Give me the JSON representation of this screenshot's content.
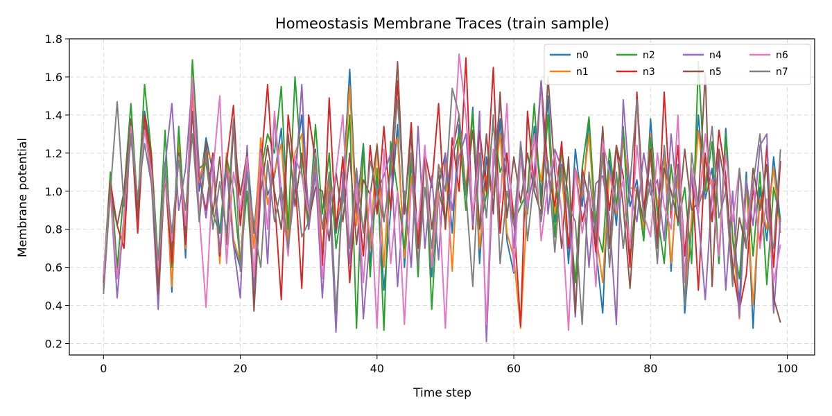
{
  "chart_data": {
    "type": "line",
    "title": "Homeostasis Membrane Traces (train sample)",
    "xlabel": "Time step",
    "ylabel": "Membrane potential",
    "xlim": [
      -5,
      104
    ],
    "ylim": [
      0.14,
      1.8
    ],
    "xticks": [
      0,
      20,
      40,
      60,
      80,
      100
    ],
    "yticks": [
      0.2,
      0.4,
      0.6,
      0.8,
      1.0,
      1.2,
      1.4,
      1.6,
      1.8
    ],
    "grid": true,
    "legend_position": "top-right",
    "x_start": 0,
    "x_step": 1,
    "series": [
      {
        "name": "n0",
        "color": "#1f77b4",
        "values": [
          0.5,
          1.08,
          0.55,
          0.82,
          1.38,
          0.85,
          1.42,
          1.2,
          0.52,
          1.15,
          0.47,
          1.3,
          0.65,
          1.55,
          1.0,
          1.28,
          1.1,
          0.78,
          1.15,
          0.72,
          0.6,
          1.2,
          0.78,
          1.22,
          0.98,
          1.08,
          1.33,
          0.7,
          1.12,
          1.4,
          0.88,
          1.22,
          0.63,
          1.1,
          0.78,
          1.02,
          1.64,
          0.88,
          1.25,
          0.62,
          1.05,
          0.48,
          0.9,
          1.35,
          0.6,
          1.15,
          0.72,
          1.22,
          0.55,
          1.03,
          1.2,
          0.78,
          1.35,
          0.98,
          1.44,
          0.62,
          1.18,
          0.92,
          1.38,
          0.74,
          0.57,
          1.22,
          0.88,
          1.34,
          0.98,
          1.5,
          0.84,
          1.14,
          0.62,
          1.22,
          0.92,
          1.38,
          0.7,
          0.36,
          1.16,
          0.82,
          1.32,
          0.92,
          1.06,
          0.74,
          1.38,
          0.88,
          1.22,
          0.58,
          1.14,
          0.36,
          0.82,
          1.4,
          0.96,
          1.12,
          0.62,
          1.33,
          0.75,
          0.42,
          1.1,
          0.28,
          1.02,
          0.74,
          1.18,
          0.84
        ]
      },
      {
        "name": "n1",
        "color": "#ff7f0e",
        "values": [
          0.52,
          1.02,
          0.58,
          0.78,
          1.35,
          0.88,
          1.38,
          1.16,
          0.55,
          1.12,
          0.5,
          1.28,
          0.7,
          1.5,
          1.05,
          1.22,
          1.15,
          0.62,
          1.2,
          0.75,
          0.62,
          1.15,
          0.7,
          1.28,
          0.93,
          1.1,
          1.25,
          0.74,
          1.2,
          1.3,
          0.8,
          1.15,
          0.68,
          1.05,
          0.84,
          0.98,
          1.55,
          0.82,
          1.2,
          0.7,
          1.25,
          0.6,
          1.2,
          1.28,
          0.65,
          1.08,
          0.78,
          1.18,
          0.62,
          1.1,
          1.15,
          0.58,
          1.3,
          1.02,
          1.4,
          0.7,
          1.08,
          0.98,
          1.3,
          0.78,
          0.65,
          0.28,
          0.95,
          1.28,
          1.05,
          1.4,
          0.88,
          1.08,
          0.7,
          1.12,
          0.98,
          1.3,
          0.78,
          0.52,
          1.1,
          0.88,
          1.26,
          1.02,
          1.0,
          0.8,
          1.3,
          0.92,
          1.18,
          0.62,
          1.08,
          0.42,
          0.86,
          1.32,
          1.0,
          1.06,
          0.66,
          1.28,
          0.78,
          0.33,
          1.04,
          0.4,
          0.96,
          0.8,
          1.12,
          0.78
        ]
      },
      {
        "name": "n2",
        "color": "#2ca02c",
        "values": [
          0.55,
          1.1,
          0.6,
          1.0,
          1.46,
          0.92,
          1.56,
          1.2,
          0.62,
          1.32,
          0.6,
          1.34,
          0.78,
          1.69,
          1.12,
          1.15,
          0.88,
          0.78,
          1.18,
          1.0,
          0.62,
          1.0,
          0.45,
          1.1,
          1.3,
          1.2,
          1.55,
          0.8,
          1.6,
          1.1,
          0.8,
          1.35,
          0.88,
          1.2,
          0.7,
          0.95,
          1.4,
          0.28,
          1.24,
          0.55,
          1.12,
          0.27,
          1.26,
          1.0,
          0.7,
          1.18,
          0.55,
          1.22,
          0.38,
          1.0,
          0.85,
          1.18,
          1.3,
          0.9,
          1.42,
          0.8,
          0.98,
          1.36,
          1.1,
          1.2,
          0.84,
          0.92,
          1.0,
          1.46,
          0.92,
          1.4,
          0.76,
          1.22,
          0.96,
          0.52,
          1.12,
          1.39,
          0.82,
          0.68,
          1.22,
          0.92,
          1.34,
          0.64,
          1.02,
          0.74,
          1.28,
          0.88,
          0.62,
          1.14,
          0.82,
          1.02,
          0.62,
          1.68,
          1.0,
          1.26,
          0.62,
          1.3,
          0.75,
          0.54,
          1.07,
          0.66,
          1.1,
          0.51,
          1.02,
          0.84
        ]
      },
      {
        "name": "n3",
        "color": "#d62728",
        "values": [
          0.52,
          1.05,
          0.82,
          0.7,
          1.36,
          0.78,
          1.4,
          1.18,
          0.48,
          1.08,
          0.62,
          1.2,
          0.72,
          1.58,
          1.08,
          0.9,
          1.2,
          0.66,
          1.15,
          1.45,
          0.82,
          1.2,
          0.4,
          1.12,
          1.56,
          0.96,
          0.43,
          1.4,
          1.08,
          0.49,
          1.4,
          1.16,
          0.61,
          1.49,
          0.8,
          1.18,
          0.52,
          1.04,
          0.66,
          1.24,
          0.88,
          1.34,
          0.9,
          1.58,
          0.88,
          1.36,
          0.7,
          1.2,
          1.02,
          1.46,
          0.8,
          1.28,
          1.0,
          1.7,
          0.8,
          1.32,
          1.0,
          1.65,
          0.78,
          1.2,
          0.86,
          0.29,
          1.42,
          1.02,
          1.58,
          1.1,
          0.92,
          1.26,
          0.7,
          1.12,
          0.84,
          1.0,
          0.68,
          1.2,
          0.9,
          1.24,
          1.08,
          0.6,
          1.52,
          0.9,
          1.22,
          0.74,
          1.52,
          0.86,
          1.24,
          0.66,
          1.12,
          0.48,
          1.2,
          0.84,
          1.32,
          1.08,
          0.6,
          0.38,
          0.56,
          1.02,
          0.72,
          1.24,
          0.6,
          1.16
        ]
      },
      {
        "name": "n4",
        "color": "#9467bd",
        "values": [
          0.54,
          1.0,
          0.44,
          0.88,
          1.28,
          0.95,
          1.34,
          1.06,
          0.38,
          1.14,
          1.46,
          0.9,
          1.12,
          1.58,
          1.1,
          0.86,
          1.18,
          0.68,
          1.12,
          0.72,
          0.44,
          1.24,
          0.48,
          1.22,
          0.62,
          1.4,
          0.92,
          0.7,
          1.02,
          1.56,
          0.8,
          1.1,
          0.44,
          1.0,
          0.26,
          1.1,
          0.62,
          1.08,
          0.33,
          0.78,
          1.0,
          1.08,
          1.2,
          0.5,
          1.0,
          0.6,
          1.34,
          0.7,
          1.08,
          0.64,
          1.2,
          0.9,
          1.18,
          1.3,
          0.82,
          1.42,
          0.21,
          1.12,
          1.46,
          1.1,
          0.7,
          1.26,
          0.92,
          1.1,
          1.58,
          0.88,
          1.22,
          1.12,
          0.9,
          0.34,
          1.1,
          0.6,
          1.04,
          1.08,
          0.86,
          0.3,
          1.48,
          1.0,
          0.84,
          1.2,
          0.98,
          1.06,
          0.74,
          1.3,
          0.92,
          0.56,
          1.08,
          0.86,
          0.43,
          1.0,
          1.18,
          0.48,
          1.0,
          0.34,
          1.06,
          0.82,
          1.24,
          1.3,
          0.36,
          0.86
        ]
      },
      {
        "name": "n5",
        "color": "#8c564b",
        "values": [
          0.48,
          1.0,
          0.82,
          1.0,
          1.38,
          0.88,
          1.35,
          1.12,
          0.46,
          1.1,
          0.68,
          1.2,
          0.78,
          1.42,
          0.86,
          1.26,
          0.88,
          1.18,
          0.72,
          1.32,
          0.98,
          1.2,
          0.37,
          1.0,
          1.24,
          1.0,
          0.8,
          1.3,
          0.92,
          1.2,
          0.84,
          1.02,
          1.0,
          0.74,
          1.1,
          0.84,
          1.2,
          0.72,
          1.06,
          0.98,
          1.24,
          0.84,
          1.1,
          1.68,
          0.88,
          1.3,
          0.6,
          1.18,
          0.8,
          1.1,
          0.82,
          1.2,
          1.4,
          1.0,
          1.32,
          0.8,
          1.3,
          0.88,
          1.52,
          0.86,
          1.18,
          0.94,
          1.2,
          1.0,
          0.88,
          1.6,
          1.1,
          0.7,
          1.18,
          0.36,
          1.12,
          0.96,
          0.8,
          1.34,
          0.7,
          1.24,
          0.92,
          0.49,
          1.02,
          0.84,
          1.2,
          0.7,
          1.12,
          1.0,
          0.84,
          1.22,
          0.9,
          0.94,
          1.62,
          0.5,
          1.22,
          1.02,
          0.55,
          0.86,
          0.7,
          1.12,
          0.9,
          1.14,
          0.44,
          0.31
        ]
      },
      {
        "name": "n6",
        "color": "#e377c2",
        "values": [
          0.56,
          1.0,
          0.54,
          0.86,
          1.34,
          0.96,
          1.32,
          1.1,
          0.6,
          1.08,
          0.74,
          1.18,
          0.82,
          1.6,
          0.88,
          0.39,
          1.1,
          1.5,
          0.62,
          1.1,
          0.9,
          1.18,
          0.55,
          1.2,
          0.8,
          1.42,
          1.0,
          0.66,
          1.18,
          1.08,
          0.88,
          1.2,
          0.54,
          0.9,
          1.1,
          1.4,
          0.7,
          1.04,
          0.52,
          1.0,
          0.28,
          1.22,
          0.62,
          1.0,
          0.3,
          1.04,
          0.8,
          1.24,
          0.6,
          1.0,
          0.28,
          1.1,
          1.72,
          1.4,
          0.88,
          1.2,
          0.3,
          1.22,
          0.94,
          1.46,
          0.58,
          1.18,
          0.92,
          1.3,
          0.74,
          1.04,
          1.2,
          0.88,
          0.27,
          1.12,
          0.78,
          1.0,
          0.5,
          1.26,
          1.1,
          0.9,
          1.06,
          0.7,
          1.24,
          0.88,
          0.76,
          1.2,
          0.92,
          0.8,
          1.4,
          0.52,
          1.12,
          0.88,
          1.3,
          1.0,
          0.66,
          1.2,
          0.84,
          1.12,
          0.8,
          1.06,
          0.7,
          0.96,
          0.52,
          0.72
        ]
      },
      {
        "name": "n7",
        "color": "#7f7f7f",
        "values": [
          0.46,
          1.0,
          1.47,
          0.92,
          1.3,
          0.96,
          1.25,
          1.04,
          0.64,
          1.12,
          0.78,
          1.16,
          0.9,
          1.3,
          0.84,
          1.2,
          0.8,
          1.05,
          0.78,
          1.38,
          0.58,
          1.1,
          0.82,
          0.6,
          1.16,
          0.84,
          1.02,
          0.7,
          1.12,
          0.76,
          0.84,
          1.18,
          0.8,
          1.1,
          0.36,
          1.0,
          0.7,
          1.12,
          0.78,
          1.16,
          1.0,
          0.84,
          1.1,
          1.48,
          0.94,
          1.2,
          0.6,
          1.02,
          0.7,
          1.14,
          1.0,
          1.54,
          1.4,
          1.0,
          0.5,
          1.2,
          0.86,
          1.4,
          0.62,
          1.0,
          0.82,
          1.24,
          0.74,
          1.08,
          0.84,
          1.16,
          0.68,
          1.12,
          0.92,
          0.84,
          0.3,
          1.1,
          0.78,
          1.2,
          0.6,
          1.1,
          0.7,
          1.04,
          1.48,
          0.84,
          1.06,
          0.62,
          1.24,
          0.9,
          1.12,
          0.4,
          1.2,
          0.92,
          1.04,
          1.34,
          0.86,
          1.0,
          0.5,
          1.12,
          0.7,
          1.04,
          1.3,
          0.86,
          0.7,
          1.22
        ]
      }
    ]
  }
}
